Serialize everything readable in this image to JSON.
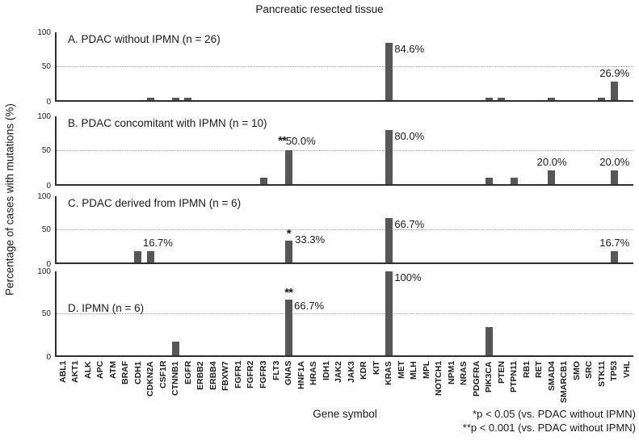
{
  "title": "Pancreatic resected tissue",
  "x_axis_label": "Gene symbol",
  "y_axis_label": "Percentage of cases with mutations (%)",
  "footnotes": [
    "*p < 0.05 (vs. PDAC without IPMN)",
    "**p < 0.001 (vs. PDAC without IPMN)"
  ],
  "colors": {
    "bar": "#575757",
    "axis": "#2e2e2e",
    "gridline": "#9a9a9a"
  },
  "chart_data": {
    "type": "bar",
    "ylim": [
      0,
      100
    ],
    "yticks": [
      0,
      50,
      100
    ],
    "gridline_at": 50,
    "grid": "dotted horizontal line at 50 in every panel",
    "legend": "none",
    "categories": [
      "ABL1",
      "AKT1",
      "ALK",
      "APC",
      "ATM",
      "BRAF",
      "CDH1",
      "CDKN2A",
      "CSF1R",
      "CTNNB1",
      "EGFR",
      "ERBB2",
      "ERBB4",
      "FBXW7",
      "FGFR1",
      "FGFR2",
      "FGFR3",
      "FLT3",
      "GNAS",
      "HNF1A",
      "HRAS",
      "IDH1",
      "JAK2",
      "JAK3",
      "KDR",
      "KIT",
      "KRAS",
      "MET",
      "MLH",
      "MPL",
      "NOTCH1",
      "NPM1",
      "NRAS",
      "PDGFRA",
      "PIK3CA",
      "PTEN",
      "PTPN11",
      "RB1",
      "RET",
      "SMAD4",
      "SMARCB1",
      "SMO",
      "SRC",
      "STK11",
      "TP53",
      "VHL"
    ],
    "panels": [
      {
        "id": "a",
        "label": "A. PDAC without IPMN (n = 26)",
        "bars": [
          {
            "gene": "CDKN2A",
            "value": 3.8
          },
          {
            "gene": "CTNNB1",
            "value": 3.8
          },
          {
            "gene": "EGFR",
            "value": 3.8
          },
          {
            "gene": "KRAS",
            "value": 84.6
          },
          {
            "gene": "PIK3CA",
            "value": 3.8
          },
          {
            "gene": "PTEN",
            "value": 3.8
          },
          {
            "gene": "SMAD4",
            "value": 3.8
          },
          {
            "gene": "STK11",
            "value": 3.8
          },
          {
            "gene": "TP53",
            "value": 26.9
          }
        ],
        "annotations": [
          {
            "gene": "KRAS",
            "text": "84.6%",
            "pos": "right"
          },
          {
            "gene": "TP53",
            "text": "26.9%",
            "pos": "above"
          }
        ]
      },
      {
        "id": "b",
        "label": "B. PDAC concomitant with IPMN (n = 10)",
        "bars": [
          {
            "gene": "FGFR3",
            "value": 10
          },
          {
            "gene": "GNAS",
            "value": 50
          },
          {
            "gene": "KRAS",
            "value": 80
          },
          {
            "gene": "PIK3CA",
            "value": 10
          },
          {
            "gene": "PTPN11",
            "value": 10
          },
          {
            "gene": "SMAD4",
            "value": 20
          },
          {
            "gene": "TP53",
            "value": 20
          }
        ],
        "annotations": [
          {
            "gene": "GNAS",
            "text": "**50.0%",
            "pos": "left-above"
          },
          {
            "gene": "KRAS",
            "text": "80.0%",
            "pos": "right"
          },
          {
            "gene": "SMAD4",
            "text": "20.0%",
            "pos": "above"
          },
          {
            "gene": "TP53",
            "text": "20.0%",
            "pos": "above"
          }
        ]
      },
      {
        "id": "c",
        "label": "C. PDAC derived from IPMN (n = 6)",
        "bars": [
          {
            "gene": "CDH1",
            "value": 16.7
          },
          {
            "gene": "CDKN2A",
            "value": 16.7
          },
          {
            "gene": "GNAS",
            "value": 33.3
          },
          {
            "gene": "KRAS",
            "value": 66.7
          },
          {
            "gene": "TP53",
            "value": 16.7
          }
        ],
        "annotations": [
          {
            "gene": "CDKN2A",
            "text": "16.7%",
            "pos": "above",
            "dx": 9
          },
          {
            "gene": "GNAS",
            "text": "*",
            "pos": "star-above"
          },
          {
            "gene": "GNAS",
            "text": "33.3%",
            "pos": "right-up"
          },
          {
            "gene": "KRAS",
            "text": "66.7%",
            "pos": "right"
          },
          {
            "gene": "TP53",
            "text": "16.7%",
            "pos": "above"
          }
        ]
      },
      {
        "id": "d",
        "label": "D. IPMN (n = 6)",
        "bars": [
          {
            "gene": "CTNNB1",
            "value": 16.7
          },
          {
            "gene": "GNAS",
            "value": 66.7
          },
          {
            "gene": "KRAS",
            "value": 100
          },
          {
            "gene": "PIK3CA",
            "value": 33.3
          }
        ],
        "annotations": [
          {
            "gene": "GNAS",
            "text": "**",
            "pos": "star-above"
          },
          {
            "gene": "GNAS",
            "text": "66.7%",
            "pos": "right"
          },
          {
            "gene": "KRAS",
            "text": "100%",
            "pos": "right"
          }
        ]
      }
    ]
  }
}
